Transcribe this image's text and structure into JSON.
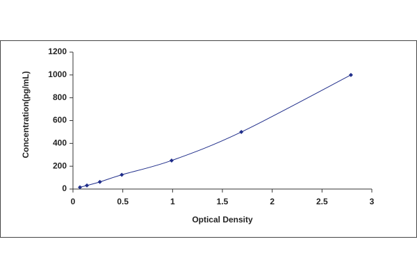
{
  "chart_data": {
    "type": "scatter",
    "x_label": "Optical Density",
    "y_label": "Concentration(pg/mL)",
    "x": [
      0.07,
      0.14,
      0.27,
      0.49,
      0.99,
      1.69,
      2.79
    ],
    "values": [
      15.6,
      31.25,
      62.5,
      125,
      250,
      500,
      1000
    ],
    "color": "#1f2d8a",
    "line": true,
    "xlim": [
      0,
      3
    ],
    "xticks": [
      0,
      0.5,
      1,
      1.5,
      2,
      2.5,
      3
    ],
    "ylim": [
      0,
      1200
    ],
    "yticks": [
      0,
      200,
      400,
      600,
      800,
      1000,
      1200
    ],
    "grid": false
  }
}
